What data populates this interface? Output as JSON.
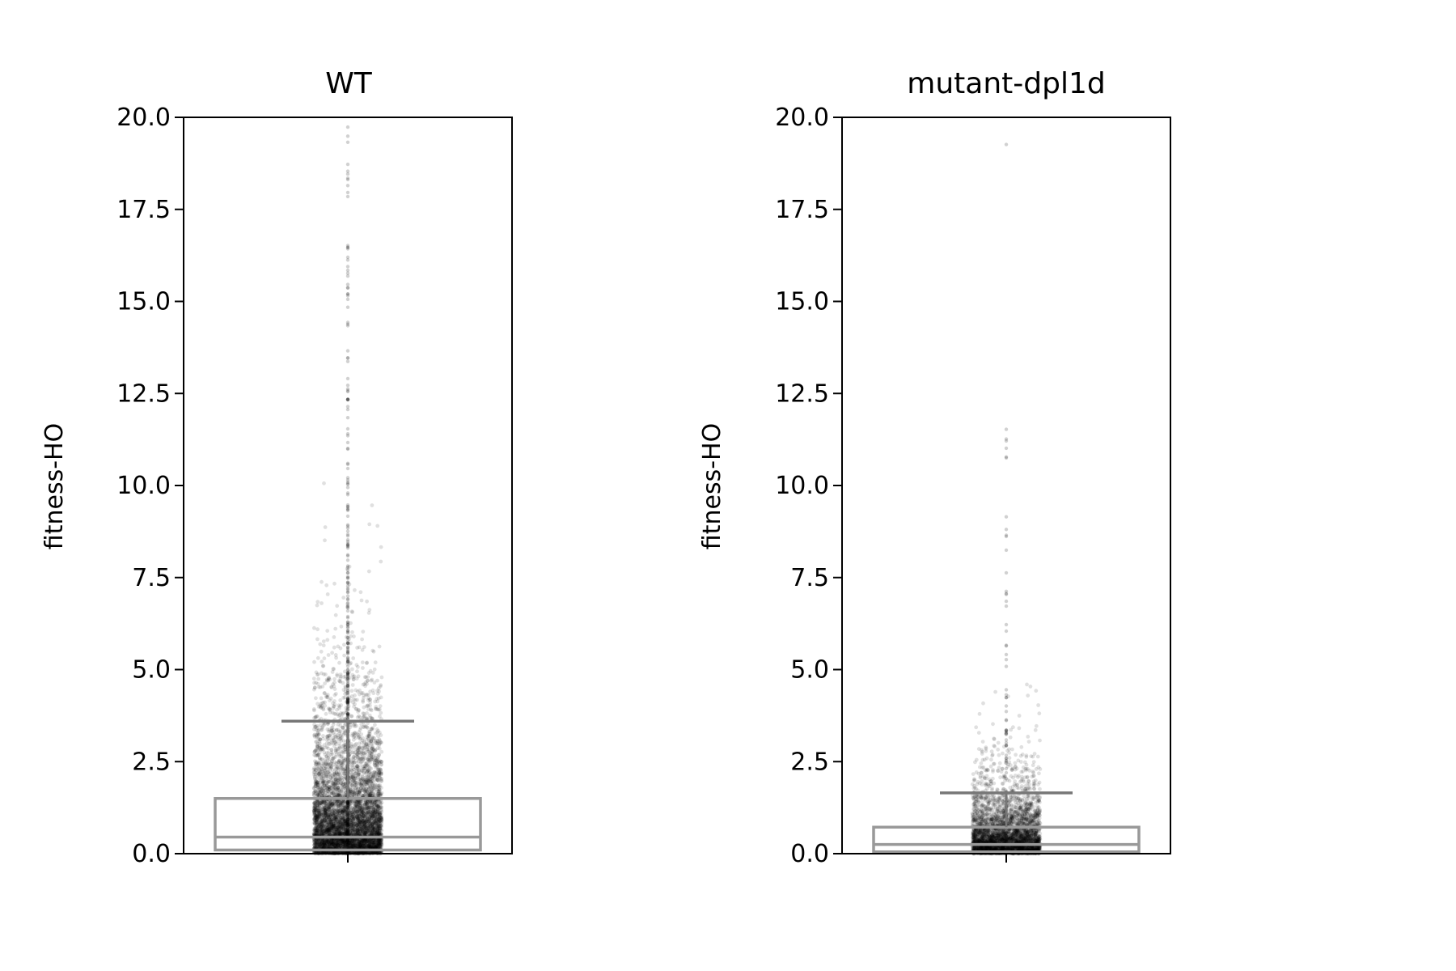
{
  "chart_data": [
    {
      "type": "box",
      "title": "WT",
      "xlabel": "",
      "ylabel": "fitness-HO",
      "ylim": [
        0,
        20
      ],
      "yticks": [
        "0.0",
        "2.5",
        "5.0",
        "7.5",
        "10.0",
        "12.5",
        "15.0",
        "17.5",
        "20.0"
      ],
      "grid": false,
      "box": {
        "q1": 0.1,
        "median": 0.45,
        "q3": 1.5,
        "whisker_low": 0.0,
        "whisker_high": 3.6
      },
      "points": {
        "n_approx": 6000,
        "range": [
          0,
          20
        ],
        "density": "heavy near 0, sparse above 5"
      },
      "colors": {
        "box": "#999999",
        "points": "#000000"
      }
    },
    {
      "type": "box",
      "title": "mutant-dpl1d",
      "xlabel": "",
      "ylabel": "fitness-HO",
      "ylim": [
        0,
        20
      ],
      "yticks": [
        "0.0",
        "2.5",
        "5.0",
        "7.5",
        "10.0",
        "12.5",
        "15.0",
        "17.5",
        "20.0"
      ],
      "grid": false,
      "box": {
        "q1": 0.05,
        "median": 0.25,
        "q3": 0.72,
        "whisker_low": 0.0,
        "whisker_high": 1.65
      },
      "points": {
        "n_approx": 4000,
        "range": [
          0,
          20
        ],
        "density": "heavy near 0, sparse above 3"
      },
      "colors": {
        "box": "#999999",
        "points": "#000000"
      }
    }
  ]
}
